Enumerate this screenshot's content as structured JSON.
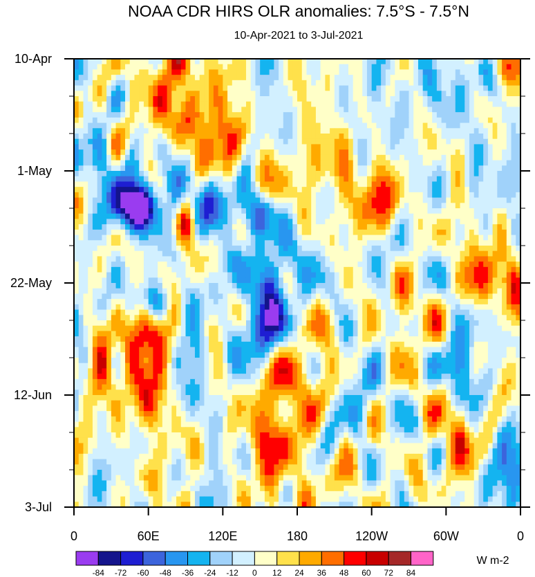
{
  "chart_data": {
    "type": "heatmap",
    "title": "NOAA CDR HIRS OLR anomalies: 7.5°S - 7.5°N",
    "subtitle": "10-Apr-2021 to 3-Jul-2021",
    "xlabel": "",
    "ylabel": "",
    "x_ticks": [
      {
        "lon": 0,
        "label": "0"
      },
      {
        "lon": 60,
        "label": "60E"
      },
      {
        "lon": 120,
        "label": "120E"
      },
      {
        "lon": 180,
        "label": "180"
      },
      {
        "lon": 240,
        "label": "120W"
      },
      {
        "lon": 300,
        "label": "60W"
      },
      {
        "lon": 360,
        "label": "0"
      }
    ],
    "y_ticks": [
      {
        "day": 0,
        "label": "10-Apr"
      },
      {
        "day": 21,
        "label": "1-May"
      },
      {
        "day": 42,
        "label": "22-May"
      },
      {
        "day": 63,
        "label": "12-Jun"
      },
      {
        "day": 84,
        "label": "3-Jul"
      }
    ],
    "xlim": [
      0,
      360
    ],
    "ylim_days": [
      0,
      84
    ],
    "colorbar": {
      "units": "W m-2",
      "levels": [
        "-84",
        "-72",
        "-60",
        "-48",
        "-36",
        "-24",
        "-12",
        "0",
        "12",
        "24",
        "36",
        "48",
        "60",
        "72",
        "84"
      ],
      "colors": [
        "#9a3cf0",
        "#14148c",
        "#1e1ed2",
        "#3c64dc",
        "#2896f0",
        "#14b4f0",
        "#a0d2fa",
        "#d2f0ff",
        "#ffffc8",
        "#ffe14b",
        "#ffaa00",
        "#ff6e00",
        "#ff0000",
        "#c80000",
        "#a52828",
        "#ff64c8"
      ]
    },
    "field_features": [
      {
        "lon": 50,
        "day": 28,
        "amp": -95,
        "slon": 12,
        "sday": 3
      },
      {
        "lon": 72,
        "day": 25,
        "amp": -40,
        "slon": 14,
        "sday": 4
      },
      {
        "lon": 110,
        "day": 27,
        "amp": -35,
        "slon": 14,
        "sday": 4
      },
      {
        "lon": 150,
        "day": 29,
        "amp": -55,
        "slon": 12,
        "sday": 3
      },
      {
        "lon": 160,
        "day": 41,
        "amp": -50,
        "slon": 18,
        "sday": 5
      },
      {
        "lon": 150,
        "day": 51,
        "amp": -45,
        "slon": 14,
        "sday": 4
      },
      {
        "lon": 65,
        "day": 46,
        "amp": -55,
        "slon": 12,
        "sday": 3
      },
      {
        "lon": 55,
        "day": 7,
        "amp": -30,
        "slon": 14,
        "sday": 4
      },
      {
        "lon": 100,
        "day": 55,
        "amp": -40,
        "slon": 10,
        "sday": 4
      },
      {
        "lon": 20,
        "day": 20,
        "amp": -25,
        "slon": 16,
        "sday": 5
      },
      {
        "lon": 70,
        "day": 8,
        "amp": 60,
        "slon": 16,
        "sday": 5
      },
      {
        "lon": 115,
        "day": 15,
        "amp": 40,
        "slon": 16,
        "sday": 6
      },
      {
        "lon": 85,
        "day": 1,
        "amp": 40,
        "slon": 10,
        "sday": 3
      },
      {
        "lon": 90,
        "day": 31,
        "amp": 55,
        "slon": 5,
        "sday": 3
      },
      {
        "lon": 68,
        "day": 51,
        "amp": 78,
        "slon": 9,
        "sday": 4
      },
      {
        "lon": 55,
        "day": 60,
        "amp": 45,
        "slon": 12,
        "sday": 8
      },
      {
        "lon": 20,
        "day": 60,
        "amp": 40,
        "slon": 8,
        "sday": 4
      },
      {
        "lon": 175,
        "day": 61,
        "amp": 45,
        "slon": 16,
        "sday": 5
      },
      {
        "lon": 155,
        "day": 71,
        "amp": 40,
        "slon": 12,
        "sday": 4
      },
      {
        "lon": 190,
        "day": 78,
        "amp": 25,
        "slon": 20,
        "sday": 6
      },
      {
        "lon": 200,
        "day": 22,
        "amp": 25,
        "slon": 25,
        "sday": 5
      },
      {
        "lon": 250,
        "day": 28,
        "amp": 30,
        "slon": 20,
        "sday": 4
      },
      {
        "lon": 350,
        "day": 36,
        "amp": 30,
        "slon": 10,
        "sday": 6
      },
      {
        "lon": 330,
        "day": 42,
        "amp": 35,
        "slon": 14,
        "sday": 4
      },
      {
        "lon": 255,
        "day": 48,
        "amp": 20,
        "slon": 18,
        "sday": 6
      },
      {
        "lon": 345,
        "day": 1,
        "amp": 30,
        "slon": 8,
        "sday": 2
      },
      {
        "lon": 300,
        "day": 72,
        "amp": 25,
        "slon": 18,
        "sday": 6
      },
      {
        "lon": 345,
        "day": 78,
        "amp": -45,
        "slon": 10,
        "sday": 5
      },
      {
        "lon": 310,
        "day": 57,
        "amp": -35,
        "slon": 12,
        "sday": 4
      },
      {
        "lon": 340,
        "day": 24,
        "amp": -30,
        "slon": 12,
        "sday": 4
      },
      {
        "lon": 285,
        "day": 5,
        "amp": -25,
        "slon": 20,
        "sday": 5
      },
      {
        "lon": 245,
        "day": 37,
        "amp": -20,
        "slon": 14,
        "sday": 4
      },
      {
        "lon": 230,
        "day": 66,
        "amp": -15,
        "slon": 20,
        "sday": 8
      }
    ]
  }
}
